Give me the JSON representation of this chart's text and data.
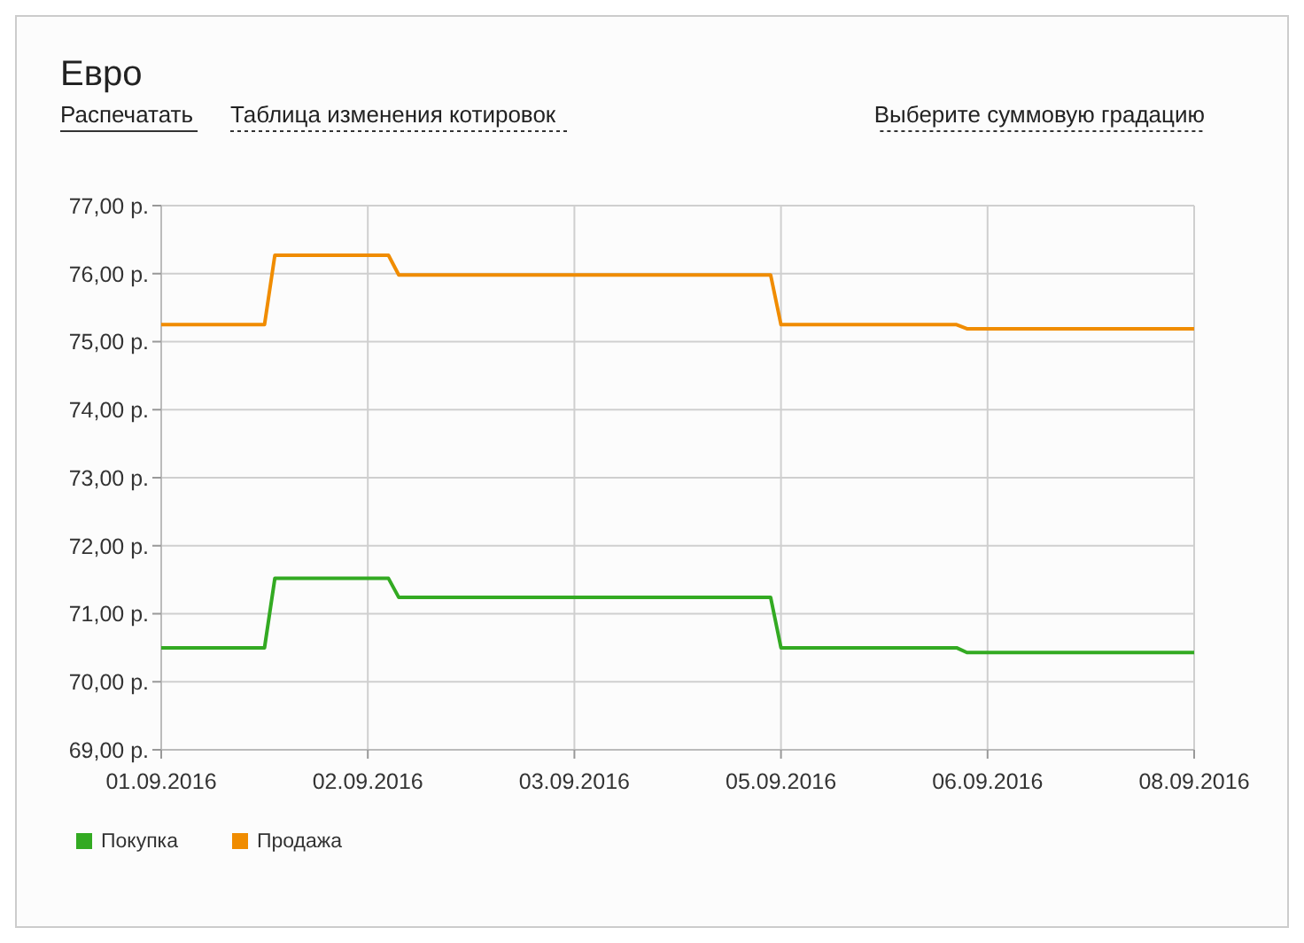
{
  "chart_data": {
    "type": "line",
    "title": "Евро",
    "annotations": [
      "Распечатать",
      "Таблица изменения котировок",
      "Выберите суммовую градацию"
    ],
    "categories": [
      "01.09.2016",
      null,
      null,
      null,
      null,
      null,
      null,
      null,
      null,
      null,
      null,
      null,
      null,
      null,
      null,
      null,
      null,
      null,
      null,
      null,
      "02.09.2016",
      null,
      null,
      null,
      null,
      null,
      null,
      null,
      null,
      null,
      null,
      null,
      null,
      null,
      null,
      null,
      null,
      null,
      null,
      null,
      "03.09.2016",
      null,
      null,
      null,
      null,
      null,
      null,
      null,
      null,
      null,
      null,
      null,
      null,
      null,
      null,
      null,
      null,
      null,
      null,
      null,
      "05.09.2016",
      null,
      null,
      null,
      null,
      null,
      null,
      null,
      null,
      null,
      null,
      null,
      null,
      null,
      null,
      null,
      null,
      null,
      null,
      null,
      "06.09.2016",
      null,
      null,
      null,
      null,
      null,
      null,
      null,
      null,
      null,
      null,
      null,
      null,
      null,
      null,
      null,
      null,
      null,
      null,
      null,
      "08.09.2016"
    ],
    "series": [
      {
        "name": "Покупка",
        "color": "#33aa22",
        "values": [
          70.5,
          70.5,
          70.5,
          70.5,
          70.5,
          70.5,
          70.5,
          70.5,
          70.5,
          70.5,
          70.5,
          71.52,
          71.52,
          71.52,
          71.52,
          71.52,
          71.52,
          71.52,
          71.52,
          71.52,
          71.52,
          71.52,
          71.52,
          71.24,
          71.24,
          71.24,
          71.24,
          71.24,
          71.24,
          71.24,
          71.24,
          71.24,
          71.24,
          71.24,
          71.24,
          71.24,
          71.24,
          71.24,
          71.24,
          71.24,
          71.24,
          71.24,
          71.24,
          71.24,
          71.24,
          71.24,
          71.24,
          71.24,
          71.24,
          71.24,
          71.24,
          71.24,
          71.24,
          71.24,
          71.24,
          71.24,
          71.24,
          71.24,
          71.24,
          71.24,
          70.5,
          70.5,
          70.5,
          70.5,
          70.5,
          70.5,
          70.5,
          70.5,
          70.5,
          70.5,
          70.5,
          70.5,
          70.5,
          70.5,
          70.5,
          70.5,
          70.5,
          70.5,
          70.43,
          70.43,
          70.43,
          70.43,
          70.43,
          70.43,
          70.43,
          70.43,
          70.43,
          70.43,
          70.43,
          70.43,
          70.43,
          70.43,
          70.43,
          70.43,
          70.43,
          70.43,
          70.43,
          70.43,
          70.43,
          70.43,
          70.43
        ]
      },
      {
        "name": "Продажа",
        "color": "#f08c00",
        "values": [
          75.25,
          75.25,
          75.25,
          75.25,
          75.25,
          75.25,
          75.25,
          75.25,
          75.25,
          75.25,
          75.25,
          76.27,
          76.27,
          76.27,
          76.27,
          76.27,
          76.27,
          76.27,
          76.27,
          76.27,
          76.27,
          76.27,
          76.27,
          75.98,
          75.98,
          75.98,
          75.98,
          75.98,
          75.98,
          75.98,
          75.98,
          75.98,
          75.98,
          75.98,
          75.98,
          75.98,
          75.98,
          75.98,
          75.98,
          75.98,
          75.98,
          75.98,
          75.98,
          75.98,
          75.98,
          75.98,
          75.98,
          75.98,
          75.98,
          75.98,
          75.98,
          75.98,
          75.98,
          75.98,
          75.98,
          75.98,
          75.98,
          75.98,
          75.98,
          75.98,
          75.25,
          75.25,
          75.25,
          75.25,
          75.25,
          75.25,
          75.25,
          75.25,
          75.25,
          75.25,
          75.25,
          75.25,
          75.25,
          75.25,
          75.25,
          75.25,
          75.25,
          75.25,
          75.19,
          75.19,
          75.19,
          75.19,
          75.19,
          75.19,
          75.19,
          75.19,
          75.19,
          75.19,
          75.19,
          75.19,
          75.19,
          75.19,
          75.19,
          75.19,
          75.19,
          75.19,
          75.19,
          75.19,
          75.19,
          75.19,
          75.19
        ]
      }
    ],
    "ylim": [
      69,
      77
    ],
    "yticks": [
      {
        "value": 69,
        "label": "69,00 р."
      },
      {
        "value": 70,
        "label": "70,00 р."
      },
      {
        "value": 71,
        "label": "71,00 р."
      },
      {
        "value": 72,
        "label": "72,00 р."
      },
      {
        "value": 73,
        "label": "73,00 р."
      },
      {
        "value": 74,
        "label": "74,00 р."
      },
      {
        "value": 75,
        "label": "75,00 р."
      },
      {
        "value": 76,
        "label": "76,00 р."
      },
      {
        "value": 77,
        "label": "77,00 р."
      }
    ],
    "grid": true,
    "legend": "bottom left",
    "marker": "none",
    "line_style": "solid"
  }
}
